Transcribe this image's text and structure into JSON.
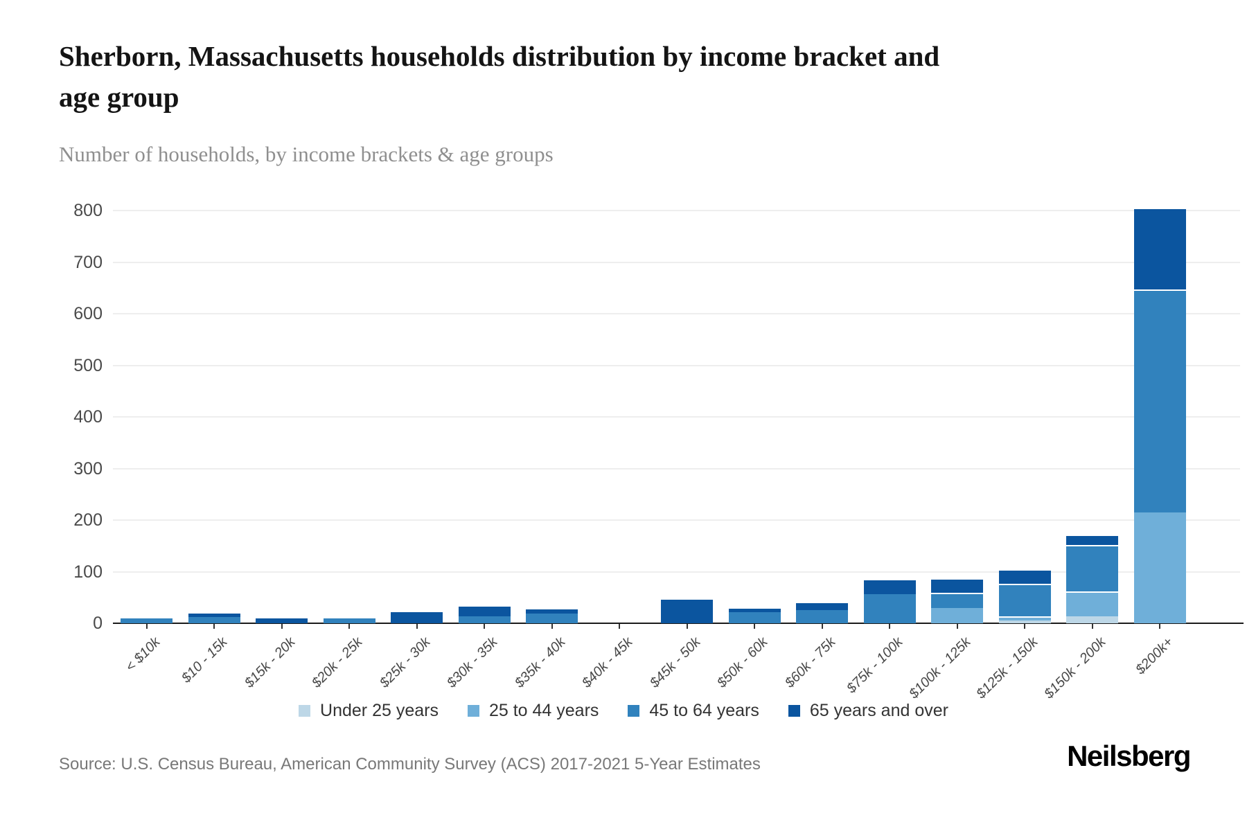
{
  "header": {
    "title": "Sherborn, Massachusetts households distribution by income bracket and age group",
    "subtitle": "Number of households, by income brackets & age groups"
  },
  "chart_data": {
    "type": "bar",
    "stacked": true,
    "title": "Sherborn, Massachusetts households distribution by income bracket and age group",
    "subtitle": "Number of households, by income brackets & age groups",
    "categories": [
      "< $10k",
      "$10 - 15k",
      "$15k - 20k",
      "$20k - 25k",
      "$25k - 30k",
      "$30k - 35k",
      "$35k - 40k",
      "$40k - 45k",
      "$45k - 50k",
      "$50k - 60k",
      "$60k - 75k",
      "$75k - 100k",
      "$100k - 125k",
      "$125k - 150k",
      "$150k - 200k",
      "$200k+"
    ],
    "series": [
      {
        "name": "Under 25 years",
        "color": "#bdd7e7",
        "values": [
          0,
          0,
          0,
          0,
          0,
          0,
          0,
          0,
          0,
          0,
          0,
          0,
          0,
          6,
          14,
          0
        ]
      },
      {
        "name": "25 to 44 years",
        "color": "#6fafd9",
        "values": [
          0,
          0,
          0,
          0,
          0,
          0,
          0,
          0,
          0,
          0,
          0,
          0,
          30,
          7,
          48,
          215
        ]
      },
      {
        "name": "45 to 64 years",
        "color": "#3182bd",
        "values": [
          10,
          12,
          0,
          9,
          0,
          13,
          19,
          0,
          0,
          22,
          25,
          57,
          29,
          63,
          90,
          432
        ]
      },
      {
        "name": "65 years and over",
        "color": "#0b559f",
        "values": [
          0,
          10,
          9,
          0,
          21,
          22,
          11,
          0,
          46,
          9,
          16,
          29,
          28,
          29,
          20,
          158
        ]
      }
    ],
    "totals": [
      10,
      22,
      9,
      9,
      21,
      35,
      30,
      0,
      46,
      31,
      41,
      86,
      87,
      105,
      172,
      805
    ],
    "xlabel": "",
    "ylabel": "",
    "ylim": [
      0,
      800
    ],
    "yticks": [
      0,
      100,
      200,
      300,
      400,
      500,
      600,
      700,
      800
    ],
    "grid": true,
    "legend_position": "bottom"
  },
  "footer": {
    "source": "Source: U.S. Census Bureau, American Community Survey (ACS) 2017-2021 5-Year Estimates",
    "brand": "Neilsberg"
  }
}
